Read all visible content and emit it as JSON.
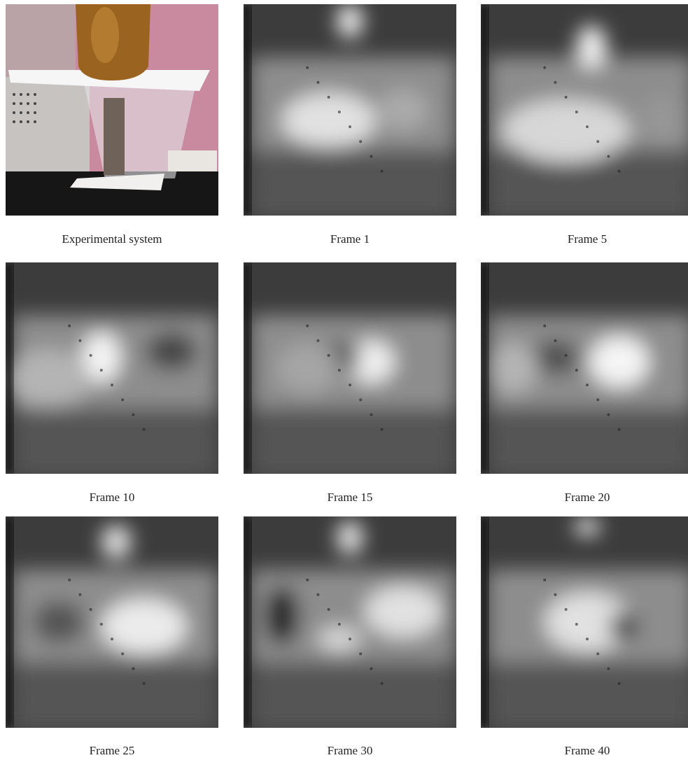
{
  "figure": {
    "panels": [
      {
        "caption": "Experimental system"
      },
      {
        "caption": "Frame 1"
      },
      {
        "caption": "Frame 5"
      },
      {
        "caption": "Frame 10"
      },
      {
        "caption": "Frame 15"
      },
      {
        "caption": "Frame 20"
      },
      {
        "caption": "Frame 25"
      },
      {
        "caption": "Frame 30"
      },
      {
        "caption": "Frame 40"
      }
    ]
  }
}
